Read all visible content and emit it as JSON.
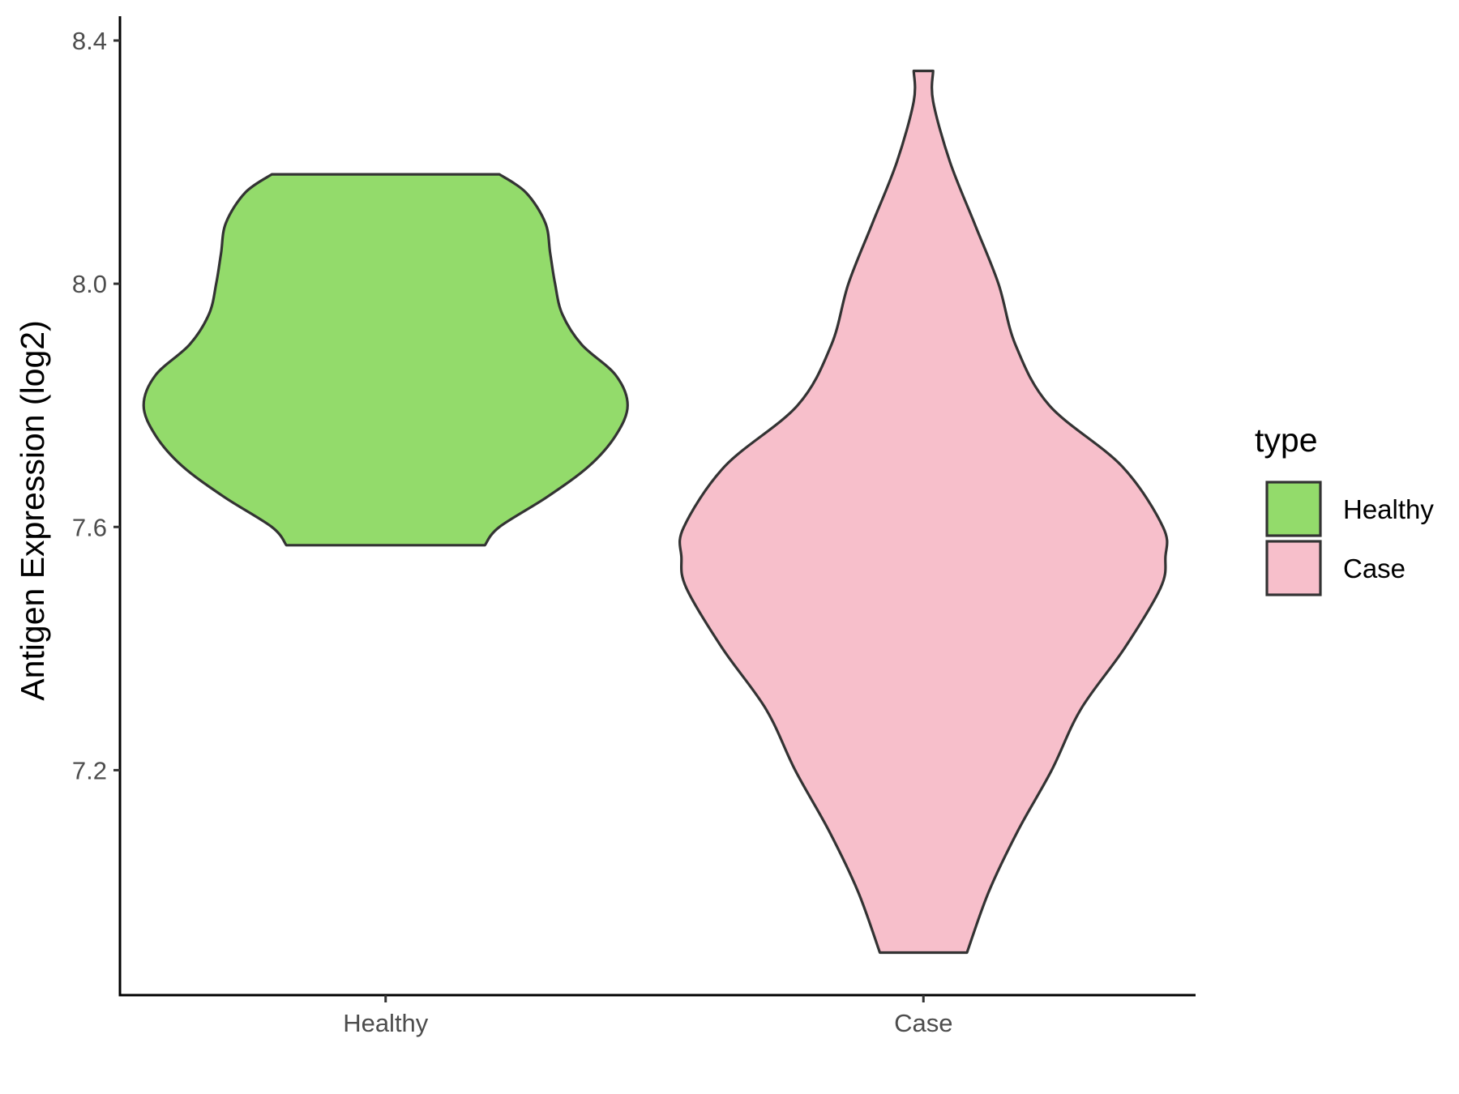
{
  "chart_data": {
    "type": "violin",
    "title": "",
    "xlabel": "",
    "ylabel": "Antigen Expression (log2)",
    "ylim": [
      6.83,
      8.44
    ],
    "yticks": [
      7.2,
      7.6,
      8.0,
      8.4
    ],
    "ytick_labels": [
      "7.2",
      "7.6",
      "8.0",
      "8.4"
    ],
    "categories": [
      "Healthy",
      "Case"
    ],
    "grid": false,
    "legend": {
      "title": "type",
      "position": "right",
      "entries": [
        "Healthy",
        "Case"
      ]
    },
    "series": [
      {
        "name": "Healthy",
        "color": "#93DB6B",
        "outline": "#333333",
        "min": 7.57,
        "max": 8.18,
        "density_profile": [
          [
            7.57,
            0.41
          ],
          [
            7.6,
            0.47
          ],
          [
            7.65,
            0.67
          ],
          [
            7.7,
            0.84
          ],
          [
            7.75,
            0.95
          ],
          [
            7.8,
            1.0
          ],
          [
            7.85,
            0.95
          ],
          [
            7.9,
            0.81
          ],
          [
            7.95,
            0.73
          ],
          [
            8.0,
            0.7
          ],
          [
            8.05,
            0.68
          ],
          [
            8.1,
            0.66
          ],
          [
            8.15,
            0.58
          ],
          [
            8.18,
            0.47
          ]
        ]
      },
      {
        "name": "Case",
        "color": "#F7BFCB",
        "outline": "#333333",
        "min": 6.9,
        "max": 8.35,
        "density_profile": [
          [
            6.9,
            0.18
          ],
          [
            7.0,
            0.27
          ],
          [
            7.1,
            0.39
          ],
          [
            7.2,
            0.53
          ],
          [
            7.3,
            0.65
          ],
          [
            7.4,
            0.83
          ],
          [
            7.5,
            0.98
          ],
          [
            7.55,
            1.0
          ],
          [
            7.6,
            0.99
          ],
          [
            7.7,
            0.82
          ],
          [
            7.8,
            0.52
          ],
          [
            7.9,
            0.38
          ],
          [
            8.0,
            0.31
          ],
          [
            8.1,
            0.21
          ],
          [
            8.2,
            0.11
          ],
          [
            8.3,
            0.04
          ],
          [
            8.35,
            0.04
          ]
        ]
      }
    ]
  }
}
